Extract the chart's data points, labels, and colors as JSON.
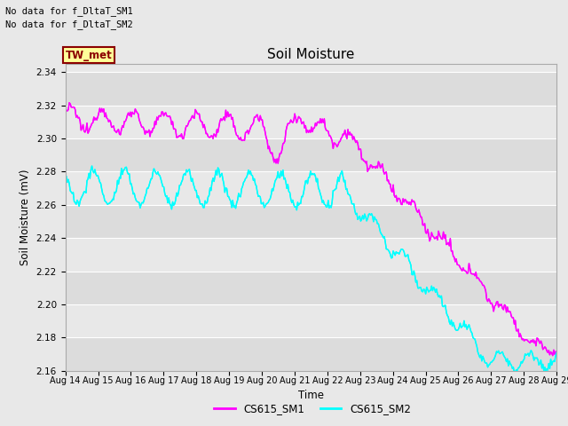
{
  "title": "Soil Moisture",
  "xlabel": "Time",
  "ylabel": "Soil Moisture (mV)",
  "ylim": [
    2.16,
    2.345
  ],
  "yticks": [
    2.16,
    2.18,
    2.2,
    2.22,
    2.24,
    2.26,
    2.28,
    2.3,
    2.32,
    2.34
  ],
  "xtick_labels": [
    "Aug 14",
    "Aug 15",
    "Aug 16",
    "Aug 17",
    "Aug 18",
    "Aug 19",
    "Aug 20",
    "Aug 21",
    "Aug 22",
    "Aug 23",
    "Aug 24",
    "Aug 25",
    "Aug 26",
    "Aug 27",
    "Aug 28",
    "Aug 29"
  ],
  "color_sm1": "#FF00FF",
  "color_sm2": "#00FFFF",
  "legend_label_sm1": "CS615_SM1",
  "legend_label_sm2": "CS615_SM2",
  "annotations": [
    "No data for f_DltaT_SM1",
    "No data for f_DltaT_SM2"
  ],
  "label_box_text": "TW_met",
  "label_box_facecolor": "#FFFF99",
  "label_box_edgecolor": "#8B0000",
  "bg_color": "#E8E8E8",
  "n_points": 500
}
